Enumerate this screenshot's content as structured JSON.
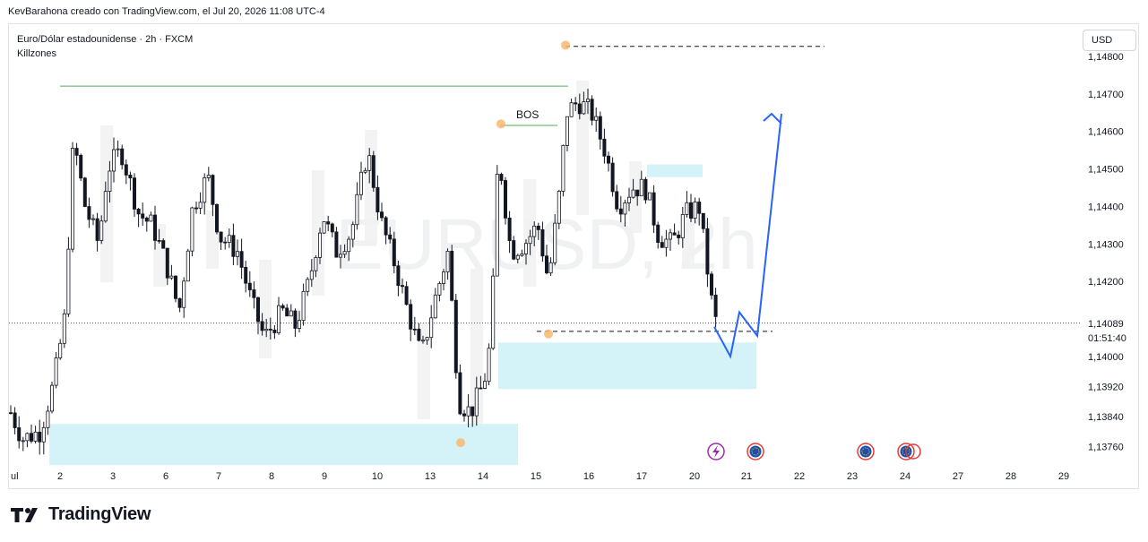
{
  "header": {
    "text": "KevBarahona creado con TradingView.com, el Jul 20, 2026 11:08 UTC-4"
  },
  "legend": {
    "symbol_line": "Euro/Dólar estadounidense · 2h · FXCM",
    "indicator": "Killzones"
  },
  "currency_button": "USD",
  "watermark": "EURUSD, 2h",
  "annotations": {
    "bos": "BOS"
  },
  "countdown": "01:51:40",
  "current_price_label": "1,14089",
  "footer": {
    "brand": "TradingView"
  },
  "colors": {
    "candle": "#131722",
    "zone": "#d4f3f8",
    "session_shade": "#eeeeee",
    "projection": "#2962ff",
    "level_green": "#4caf50",
    "marker": "#f7b96e"
  },
  "chart_data": {
    "type": "candlestick",
    "title": "Euro/Dólar estadounidense · 2h · FXCM",
    "instrument": "EURUSD",
    "timeframe": "2h",
    "x_tick_labels": [
      "ul",
      "2",
      "3",
      "6",
      "7",
      "8",
      "9",
      "10",
      "13",
      "14",
      "15",
      "16",
      "17",
      "20",
      "21",
      "22",
      "23",
      "24",
      "27",
      "28",
      "29"
    ],
    "y_tick_labels": [
      "1,14800",
      "1,14700",
      "1,14600",
      "1,14500",
      "1,14400",
      "1,14300",
      "1,14200",
      "1,14000",
      "1,13920",
      "1,13840",
      "1,13760"
    ],
    "y_ticks": [
      1.148,
      1.147,
      1.146,
      1.145,
      1.144,
      1.143,
      1.142,
      1.14,
      1.1392,
      1.1384,
      1.1376
    ],
    "ylim": [
      1.1373,
      1.1482
    ],
    "current_price": 1.14089,
    "levels": [
      {
        "kind": "green-line",
        "price": 1.1472
      },
      {
        "kind": "bos-line",
        "price": 1.1462
      },
      {
        "kind": "dashed-high",
        "price": 1.1483
      },
      {
        "kind": "dashed-low",
        "price": 1.1406
      }
    ],
    "zones": [
      {
        "from": 1.1377,
        "to": 1.1382,
        "start": "1",
        "end": "14"
      },
      {
        "from": 1.1392,
        "to": 1.1404,
        "start": "14",
        "end": "21"
      },
      {
        "from": 1.1448,
        "to": 1.145,
        "start": "17",
        "end": "20"
      }
    ],
    "projection_path": [
      1.14079,
      1.14,
      1.14118,
      1.14055,
      1.14647
    ],
    "markers": [
      1.1377,
      1.1462,
      1.1483,
      1.1406
    ]
  }
}
